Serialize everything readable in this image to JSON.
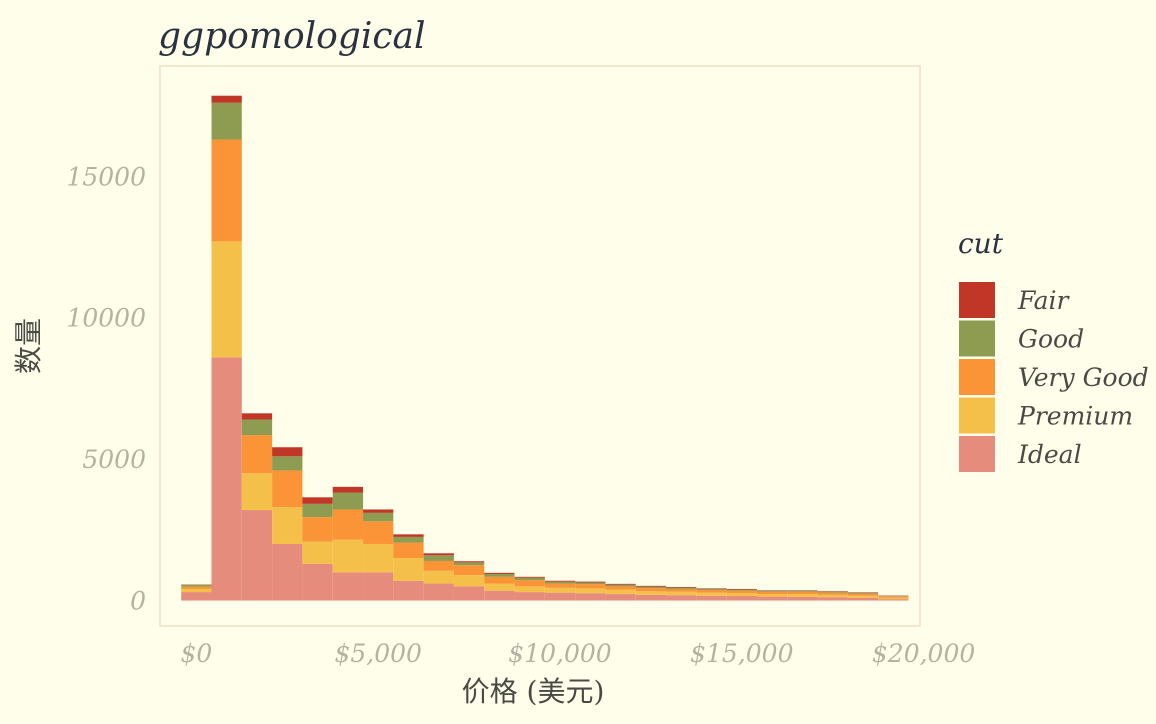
{
  "chart_data": {
    "type": "bar",
    "stacked": true,
    "title": "ggpomological",
    "xlabel": "价格 (美元)",
    "ylabel": "数量",
    "x_ticks": [
      0,
      5000,
      10000,
      15000,
      20000
    ],
    "x_tick_labels": [
      "$0",
      "$5,000",
      "$10,000",
      "$15,000",
      "$20,000"
    ],
    "y_ticks": [
      0,
      5000,
      10000,
      15000
    ],
    "y_tick_labels": [
      "0",
      "5000",
      "10000",
      "15000"
    ],
    "xlim": [
      -1000,
      19900
    ],
    "ylim": [
      -900,
      18900
    ],
    "bin_width": 833,
    "bin_centers": [
      0,
      833,
      1667,
      2500,
      3333,
      4167,
      5000,
      5833,
      6667,
      7500,
      8333,
      9167,
      10000,
      10833,
      11667,
      12500,
      13333,
      14167,
      15000,
      15833,
      16667,
      17500,
      18333,
      19167
    ],
    "legend": {
      "title": "cut",
      "position": "right"
    },
    "series": [
      {
        "name": "Ideal",
        "color": "#e68c7c",
        "values": [
          300,
          8600,
          3200,
          2000,
          1300,
          1000,
          1000,
          700,
          600,
          500,
          350,
          300,
          280,
          260,
          230,
          200,
          190,
          170,
          160,
          140,
          130,
          120,
          100,
          50
        ]
      },
      {
        "name": "Premium",
        "color": "#f5c04a",
        "values": [
          110,
          4100,
          1300,
          1300,
          780,
          1150,
          1000,
          800,
          450,
          400,
          250,
          200,
          170,
          170,
          150,
          130,
          120,
          110,
          100,
          90,
          100,
          80,
          70,
          50
        ]
      },
      {
        "name": "Very Good",
        "color": "#fb9436",
        "values": [
          80,
          3600,
          1350,
          1300,
          870,
          1070,
          800,
          550,
          350,
          350,
          240,
          220,
          150,
          150,
          120,
          110,
          100,
          90,
          90,
          80,
          80,
          80,
          70,
          50
        ]
      },
      {
        "name": "Good",
        "color": "#8e9c52",
        "values": [
          70,
          1300,
          550,
          500,
          470,
          600,
          300,
          200,
          200,
          100,
          100,
          90,
          70,
          60,
          60,
          50,
          50,
          40,
          40,
          30,
          30,
          30,
          30,
          20
        ]
      },
      {
        "name": "Fair",
        "color": "#c03728",
        "values": [
          10,
          250,
          220,
          320,
          230,
          200,
          120,
          90,
          70,
          40,
          40,
          30,
          30,
          30,
          30,
          30,
          20,
          20,
          20,
          20,
          20,
          20,
          20,
          10
        ]
      }
    ]
  },
  "colors": {
    "background": "#fffeea",
    "panel_border": "#efe1c6"
  }
}
